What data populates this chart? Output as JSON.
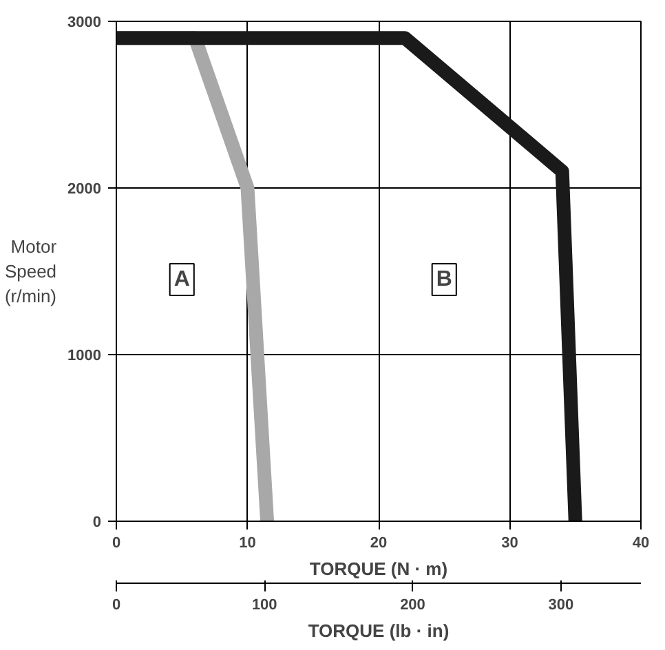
{
  "chart_data": {
    "type": "line",
    "xlabel": "TORQUE (N · m)",
    "ylabel": "Motor\nSpeed\n(r/min)",
    "x2label": "TORQUE (lb · in)",
    "series": [
      {
        "color": "#a8a8a8",
        "x": [
          0,
          6,
          10,
          11.5
        ],
        "values": [
          2900,
          2900,
          2000,
          0
        ]
      },
      {
        "color": "#1a1a1a",
        "x": [
          0,
          22,
          34,
          35
        ],
        "values": [
          2900,
          2900,
          2100,
          0
        ]
      }
    ],
    "xlim": [
      0,
      40
    ],
    "xticks": [
      0,
      10,
      20,
      30,
      40
    ],
    "ylim": [
      0,
      3000
    ],
    "yticks": [
      0,
      1000,
      2000,
      3000
    ],
    "x2lim": [
      0,
      354
    ],
    "x2ticks": [
      0,
      100,
      200,
      300
    ],
    "annotations": [
      {
        "text": "A",
        "x": 5,
        "y": 1450
      },
      {
        "text": "B",
        "x": 25,
        "y": 1450
      }
    ],
    "grid": true,
    "line_style": "solid"
  }
}
